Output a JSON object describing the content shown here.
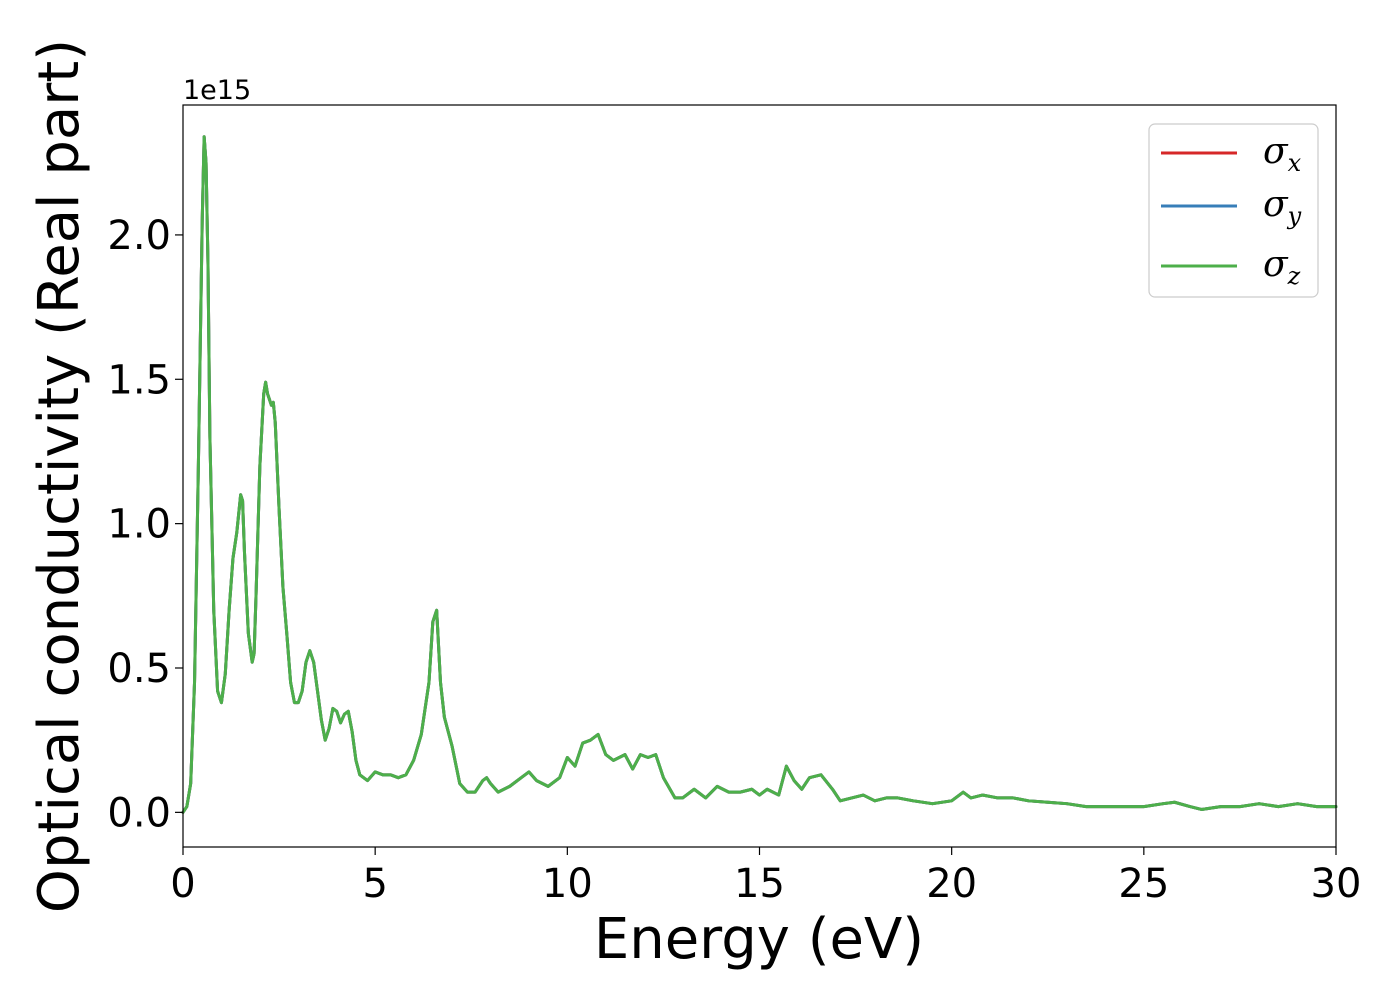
{
  "chart_data": {
    "type": "line",
    "xlabel": "Energy (eV)",
    "ylabel": "Optical conductivity (Real part)",
    "y_offset_label": "1e15",
    "xlim": [
      0,
      30
    ],
    "ylim": [
      -0.12,
      2.45
    ],
    "x_ticks": [
      0,
      5,
      10,
      15,
      20,
      25,
      30
    ],
    "x_tick_labels": [
      "0",
      "5",
      "10",
      "15",
      "20",
      "25",
      "30"
    ],
    "y_ticks": [
      0,
      0.5,
      1.0,
      1.5,
      2.0
    ],
    "y_tick_labels": [
      "0.0",
      "0.5",
      "1.0",
      "1.5",
      "2.0"
    ],
    "grid": false,
    "legend_position": "top-right",
    "legend": [
      {
        "symbol": "σ",
        "sub": "x",
        "color": "#d62728"
      },
      {
        "symbol": "σ",
        "sub": "y",
        "color": "#377eb8"
      },
      {
        "symbol": "σ",
        "sub": "z",
        "color": "#4daf4a"
      }
    ],
    "x": [
      0,
      0.1,
      0.2,
      0.3,
      0.4,
      0.5,
      0.55,
      0.6,
      0.65,
      0.7,
      0.8,
      0.9,
      1.0,
      1.1,
      1.2,
      1.3,
      1.4,
      1.5,
      1.55,
      1.6,
      1.7,
      1.8,
      1.85,
      1.9,
      2.0,
      2.1,
      2.15,
      2.2,
      2.3,
      2.35,
      2.4,
      2.5,
      2.6,
      2.7,
      2.8,
      2.9,
      3.0,
      3.1,
      3.2,
      3.3,
      3.4,
      3.5,
      3.6,
      3.7,
      3.8,
      3.9,
      4.0,
      4.1,
      4.2,
      4.3,
      4.4,
      4.5,
      4.6,
      4.8,
      5.0,
      5.2,
      5.4,
      5.6,
      5.8,
      6.0,
      6.2,
      6.4,
      6.5,
      6.6,
      6.7,
      6.8,
      7.0,
      7.2,
      7.4,
      7.6,
      7.8,
      7.9,
      8.0,
      8.2,
      8.5,
      8.8,
      9.0,
      9.2,
      9.5,
      9.8,
      10.0,
      10.2,
      10.4,
      10.6,
      10.8,
      11.0,
      11.2,
      11.5,
      11.7,
      11.9,
      12.1,
      12.3,
      12.5,
      12.8,
      13.0,
      13.3,
      13.6,
      13.9,
      14.2,
      14.5,
      14.8,
      15.0,
      15.2,
      15.5,
      15.7,
      15.9,
      16.1,
      16.3,
      16.6,
      16.9,
      17.1,
      17.4,
      17.7,
      18.0,
      18.3,
      18.6,
      19.0,
      19.5,
      20.0,
      20.3,
      20.5,
      20.8,
      21.2,
      21.6,
      22.0,
      22.5,
      23.0,
      23.5,
      24.0,
      24.5,
      25.0,
      25.5,
      25.8,
      26.2,
      26.5,
      27.0,
      27.5,
      28.0,
      28.5,
      29.0,
      29.5,
      30.0
    ],
    "series": [
      {
        "values": [
          0.0,
          0.02,
          0.1,
          0.45,
          1.2,
          2.05,
          2.34,
          2.25,
          1.9,
          1.3,
          0.7,
          0.42,
          0.38,
          0.48,
          0.7,
          0.88,
          0.97,
          1.1,
          1.08,
          0.9,
          0.62,
          0.52,
          0.55,
          0.75,
          1.2,
          1.45,
          1.49,
          1.45,
          1.41,
          1.42,
          1.35,
          1.05,
          0.78,
          0.62,
          0.45,
          0.38,
          0.38,
          0.42,
          0.52,
          0.56,
          0.52,
          0.42,
          0.32,
          0.25,
          0.29,
          0.36,
          0.35,
          0.31,
          0.34,
          0.35,
          0.28,
          0.18,
          0.13,
          0.11,
          0.14,
          0.13,
          0.13,
          0.12,
          0.13,
          0.18,
          0.27,
          0.45,
          0.66,
          0.7,
          0.45,
          0.33,
          0.23,
          0.1,
          0.07,
          0.07,
          0.11,
          0.12,
          0.1,
          0.07,
          0.09,
          0.12,
          0.14,
          0.11,
          0.09,
          0.12,
          0.19,
          0.16,
          0.24,
          0.25,
          0.27,
          0.2,
          0.18,
          0.2,
          0.15,
          0.2,
          0.19,
          0.2,
          0.12,
          0.05,
          0.05,
          0.08,
          0.05,
          0.09,
          0.07,
          0.07,
          0.08,
          0.06,
          0.08,
          0.06,
          0.16,
          0.11,
          0.08,
          0.12,
          0.13,
          0.08,
          0.04,
          0.05,
          0.06,
          0.04,
          0.05,
          0.05,
          0.04,
          0.03,
          0.04,
          0.07,
          0.05,
          0.06,
          0.05,
          0.05,
          0.04,
          0.035,
          0.03,
          0.02,
          0.02,
          0.02,
          0.02,
          0.03,
          0.035,
          0.02,
          0.01,
          0.02,
          0.02,
          0.03,
          0.02,
          0.03,
          0.02,
          0.02
        ]
      }
    ]
  }
}
